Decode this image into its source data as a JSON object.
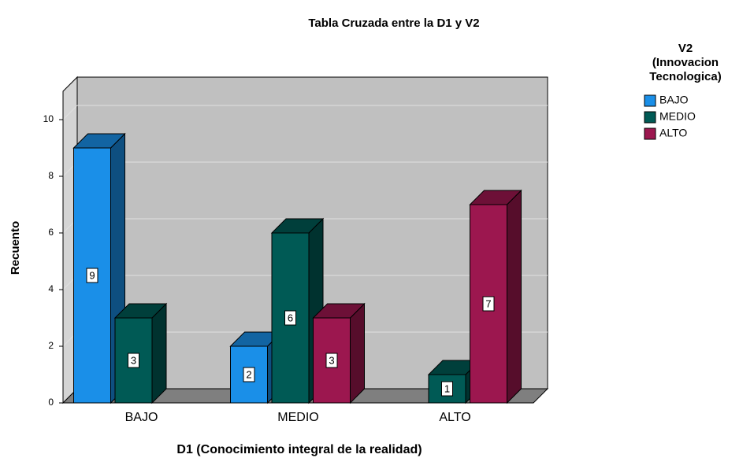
{
  "chart_data": {
    "type": "bar3d",
    "title": "Tabla Cruzada entre la D1 y V2",
    "x_label": "D1 (Conocimiento integral de la realidad)",
    "y_label": "Recuento",
    "legend_title": [
      "V2",
      "(Innovacion",
      "Tecnologica)"
    ],
    "categories": [
      "BAJO",
      "MEDIO",
      "ALTO"
    ],
    "series": [
      {
        "name": "BAJO",
        "color": "#1a8fe8",
        "values": [
          9,
          2,
          null
        ]
      },
      {
        "name": "MEDIO",
        "color": "#005a55",
        "values": [
          3,
          6,
          1
        ]
      },
      {
        "name": "ALTO",
        "color": "#9c174f",
        "values": [
          null,
          3,
          7
        ]
      }
    ],
    "ylim": [
      0,
      11
    ],
    "yticks": [
      0,
      2,
      4,
      6,
      8,
      10
    ],
    "grid": true
  }
}
